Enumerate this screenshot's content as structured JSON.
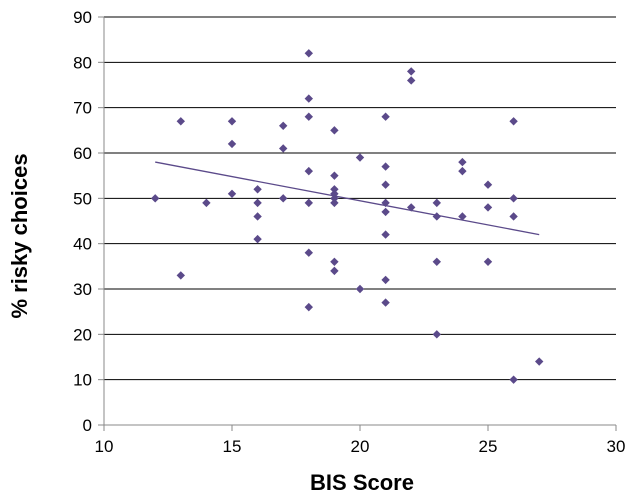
{
  "chart_data": {
    "type": "scatter",
    "title": "",
    "xlabel": "BIS Score",
    "ylabel": "% risky choices",
    "xlim": [
      10,
      30
    ],
    "ylim": [
      0,
      90
    ],
    "x_ticks": [
      10,
      15,
      20,
      25,
      30
    ],
    "y_ticks": [
      0,
      10,
      20,
      30,
      40,
      50,
      60,
      70,
      80,
      90
    ],
    "grid": "horizontal",
    "marker": "diamond",
    "point_color": "#5b4a8a",
    "points": [
      [
        12,
        50
      ],
      [
        13,
        67
      ],
      [
        13,
        33
      ],
      [
        14,
        49
      ],
      [
        15,
        67
      ],
      [
        15,
        62
      ],
      [
        15,
        51
      ],
      [
        16,
        52
      ],
      [
        16,
        49
      ],
      [
        16,
        46
      ],
      [
        16,
        41
      ],
      [
        17,
        66
      ],
      [
        17,
        61
      ],
      [
        17,
        50
      ],
      [
        18,
        82
      ],
      [
        18,
        72
      ],
      [
        18,
        68
      ],
      [
        18,
        56
      ],
      [
        18,
        49
      ],
      [
        18,
        38
      ],
      [
        18,
        26
      ],
      [
        19,
        65
      ],
      [
        19,
        55
      ],
      [
        19,
        52
      ],
      [
        19,
        51
      ],
      [
        19,
        50
      ],
      [
        19,
        49
      ],
      [
        19,
        36
      ],
      [
        19,
        34
      ],
      [
        20,
        59
      ],
      [
        20,
        30
      ],
      [
        21,
        68
      ],
      [
        21,
        57
      ],
      [
        21,
        53
      ],
      [
        21,
        49
      ],
      [
        21,
        47
      ],
      [
        21,
        42
      ],
      [
        21,
        32
      ],
      [
        21,
        27
      ],
      [
        22,
        78
      ],
      [
        22,
        76
      ],
      [
        22,
        48
      ],
      [
        23,
        49
      ],
      [
        23,
        46
      ],
      [
        23,
        36
      ],
      [
        23,
        20
      ],
      [
        24,
        58
      ],
      [
        24,
        56
      ],
      [
        24,
        46
      ],
      [
        25,
        53
      ],
      [
        25,
        48
      ],
      [
        25,
        36
      ],
      [
        26,
        67
      ],
      [
        26,
        50
      ],
      [
        26,
        46
      ],
      [
        26,
        10
      ],
      [
        27,
        14
      ]
    ],
    "trendline": {
      "x": [
        12,
        27
      ],
      "y": [
        58,
        42
      ]
    }
  }
}
